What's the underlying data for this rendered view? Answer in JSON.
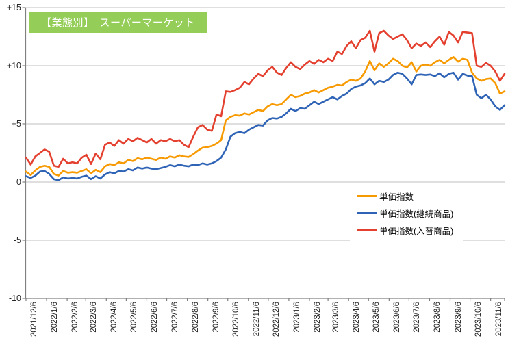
{
  "title": {
    "text": "【業態別】　スーパーマーケット",
    "bg_color": "#94CE58",
    "text_color": "#FFFFFF"
  },
  "legend": [
    {
      "label": "単価指数",
      "color": "#F79A00"
    },
    {
      "label": "単価指数(継続商品)",
      "color": "#2E63B5"
    },
    {
      "label": "単価指数(入替商品)",
      "color": "#E4402F"
    }
  ],
  "chart_data": {
    "type": "line",
    "title": "【業態別】　スーパーマーケット",
    "ylim": [
      -10,
      15
    ],
    "y_tick_values": [
      15,
      10,
      5,
      0,
      -5,
      -10
    ],
    "y_tick_labels": [
      "+15",
      "+10",
      "+5",
      "0",
      "-5",
      "-10"
    ],
    "grid": "horizontal",
    "gridline_values": [
      15,
      10,
      5,
      0,
      -5
    ],
    "legend_position": "middle-right",
    "x_frequency": "weekly",
    "x_start": "2021/12/6",
    "x_tick_labels": [
      "2021/12/6",
      "2022/1/6",
      "2022/2/6",
      "2022/3/6",
      "2022/4/6",
      "2022/5/6",
      "2022/6/6",
      "2022/7/6",
      "2022/8/6",
      "2022/9/6",
      "2022/10/6",
      "2022/11/6",
      "2022/12/6",
      "2023/1/6",
      "2023/2/6",
      "2023/3/6",
      "2023/4/6",
      "2023/5/6",
      "2023/6/6",
      "2023/7/6",
      "2023/8/6",
      "2023/9/6",
      "2023/10/6",
      "2023/11/6"
    ],
    "x_tick_day_offsets": [
      0,
      31,
      62,
      90,
      121,
      151,
      182,
      212,
      243,
      274,
      304,
      335,
      365,
      396,
      427,
      455,
      486,
      516,
      547,
      577,
      608,
      639,
      669,
      700
    ],
    "series": [
      {
        "name": "単価指数",
        "color": "#F79A00",
        "values": [
          0.9,
          0.6,
          1.0,
          1.3,
          1.4,
          1.3,
          0.7,
          0.55,
          0.95,
          0.8,
          0.85,
          0.8,
          0.95,
          1.1,
          0.75,
          1.05,
          0.85,
          1.35,
          1.55,
          1.45,
          1.7,
          1.6,
          1.9,
          1.8,
          2.05,
          1.95,
          2.1,
          2.0,
          1.9,
          2.1,
          2.0,
          2.2,
          2.1,
          2.3,
          2.2,
          2.15,
          2.4,
          2.7,
          2.95,
          3.0,
          3.1,
          3.3,
          3.6,
          5.3,
          5.6,
          5.75,
          5.7,
          5.9,
          5.8,
          6.0,
          6.2,
          6.1,
          6.5,
          6.7,
          6.6,
          6.7,
          7.1,
          7.5,
          7.3,
          7.4,
          7.6,
          7.7,
          7.9,
          7.7,
          7.9,
          8.1,
          8.2,
          8.35,
          8.3,
          8.6,
          8.8,
          8.7,
          8.9,
          9.5,
          10.4,
          9.6,
          10.2,
          9.9,
          10.2,
          10.6,
          10.4,
          10.0,
          9.85,
          10.3,
          9.5,
          10.0,
          10.1,
          10.0,
          10.3,
          10.5,
          10.2,
          10.5,
          10.75,
          10.35,
          10.6,
          10.5,
          9.4,
          8.9,
          8.7,
          8.85,
          8.9,
          8.5,
          7.6,
          7.8
        ]
      },
      {
        "name": "単価指数(継続商品)",
        "color": "#2E63B5",
        "values": [
          0.5,
          0.35,
          0.55,
          0.9,
          0.95,
          0.7,
          0.25,
          0.15,
          0.4,
          0.3,
          0.35,
          0.3,
          0.45,
          0.55,
          0.25,
          0.5,
          0.3,
          0.65,
          0.85,
          0.75,
          0.95,
          0.9,
          1.1,
          1.0,
          1.25,
          1.15,
          1.25,
          1.15,
          1.1,
          1.2,
          1.3,
          1.45,
          1.35,
          1.5,
          1.4,
          1.35,
          1.5,
          1.45,
          1.6,
          1.5,
          1.6,
          1.8,
          2.1,
          2.8,
          3.9,
          4.2,
          4.3,
          4.2,
          4.5,
          4.7,
          4.9,
          4.85,
          5.3,
          5.5,
          5.45,
          5.6,
          5.9,
          6.3,
          6.1,
          6.35,
          6.3,
          6.6,
          6.9,
          6.7,
          6.9,
          7.1,
          7.3,
          7.1,
          7.4,
          7.6,
          8.0,
          8.2,
          8.3,
          8.5,
          8.9,
          8.4,
          8.7,
          8.6,
          8.8,
          9.2,
          9.4,
          9.3,
          8.9,
          8.4,
          9.2,
          9.25,
          9.2,
          9.25,
          9.1,
          9.35,
          9.0,
          9.3,
          9.4,
          8.8,
          9.3,
          9.15,
          9.1,
          7.5,
          7.2,
          7.5,
          7.1,
          6.5,
          6.2,
          6.6
        ]
      },
      {
        "name": "単価指数(入替商品)",
        "color": "#E4402F",
        "values": [
          2.1,
          1.5,
          2.2,
          2.5,
          2.8,
          2.6,
          1.4,
          1.3,
          2.0,
          1.6,
          1.7,
          1.6,
          2.1,
          2.35,
          1.55,
          2.45,
          1.95,
          3.2,
          3.4,
          3.1,
          3.6,
          3.3,
          3.7,
          3.5,
          3.8,
          3.6,
          3.4,
          3.7,
          3.3,
          3.6,
          3.5,
          3.7,
          3.5,
          3.6,
          3.2,
          3.0,
          3.9,
          4.7,
          4.9,
          4.5,
          4.4,
          5.8,
          5.65,
          7.8,
          7.75,
          7.9,
          8.1,
          8.6,
          8.4,
          8.9,
          9.3,
          9.1,
          9.6,
          9.9,
          9.4,
          9.2,
          9.8,
          10.3,
          9.9,
          9.7,
          10.1,
          10.4,
          10.15,
          10.5,
          10.3,
          10.6,
          10.4,
          11.2,
          11.0,
          11.7,
          12.1,
          11.5,
          12.2,
          12.4,
          13.0,
          11.2,
          12.8,
          13.0,
          12.6,
          12.3,
          12.5,
          12.7,
          12.2,
          11.5,
          11.9,
          11.7,
          12.0,
          11.6,
          12.1,
          12.5,
          11.8,
          12.9,
          12.6,
          12.0,
          12.9,
          12.85,
          12.8,
          10.0,
          9.9,
          10.25,
          10.0,
          9.5,
          8.7,
          9.3
        ]
      }
    ],
    "colors": {
      "gridline": "#BFBFBF",
      "axis": "#808080",
      "tick_text": "#262626"
    }
  }
}
